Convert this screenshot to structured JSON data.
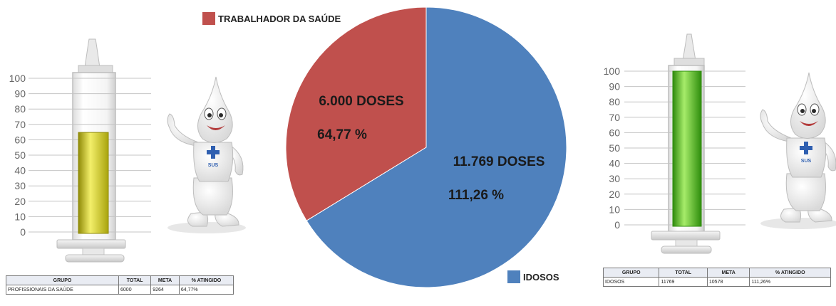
{
  "chart_data": [
    {
      "type": "bar",
      "ylim": [
        0,
        100
      ],
      "yticks": [
        0,
        10,
        20,
        30,
        40,
        50,
        60,
        70,
        80,
        90,
        100
      ],
      "values": [
        64.77
      ],
      "fill_color": "#d8d21c"
    },
    {
      "type": "pie",
      "slices": [
        {
          "name": "IDOSOS",
          "value": 11769,
          "label_doses": "11.769 DOSES",
          "label_pct": "111,26 %",
          "color": "#4f81bd"
        },
        {
          "name": "TRABALHADOR DA SAÚDE",
          "value": 6000,
          "label_doses": "6.000 DOSES",
          "label_pct": "64,77 %",
          "color": "#c0504d"
        }
      ],
      "legend": [
        "TRABALHADOR DA SAÚDE",
        "IDOSOS"
      ]
    },
    {
      "type": "bar",
      "ylim": [
        0,
        100
      ],
      "yticks": [
        0,
        10,
        20,
        30,
        40,
        50,
        60,
        70,
        80,
        90,
        100
      ],
      "values": [
        100
      ],
      "fill_color": "#4cb81c"
    },
    {
      "type": "table",
      "headers": [
        "GRUPO",
        "TOTAL",
        "META",
        "% ATINGIDO"
      ],
      "rows": [
        [
          "PROFISSIONAIS DA SAÚDE",
          "6000",
          "9264",
          "64,77%"
        ]
      ]
    },
    {
      "type": "table",
      "headers": [
        "GRUPO",
        "TOTAL",
        "META",
        "% ATINGIDO"
      ],
      "rows": [
        [
          "IDOSOS",
          "11769",
          "10578",
          "111,26%"
        ]
      ]
    }
  ],
  "mascot": {
    "badge_text": "SUS"
  }
}
